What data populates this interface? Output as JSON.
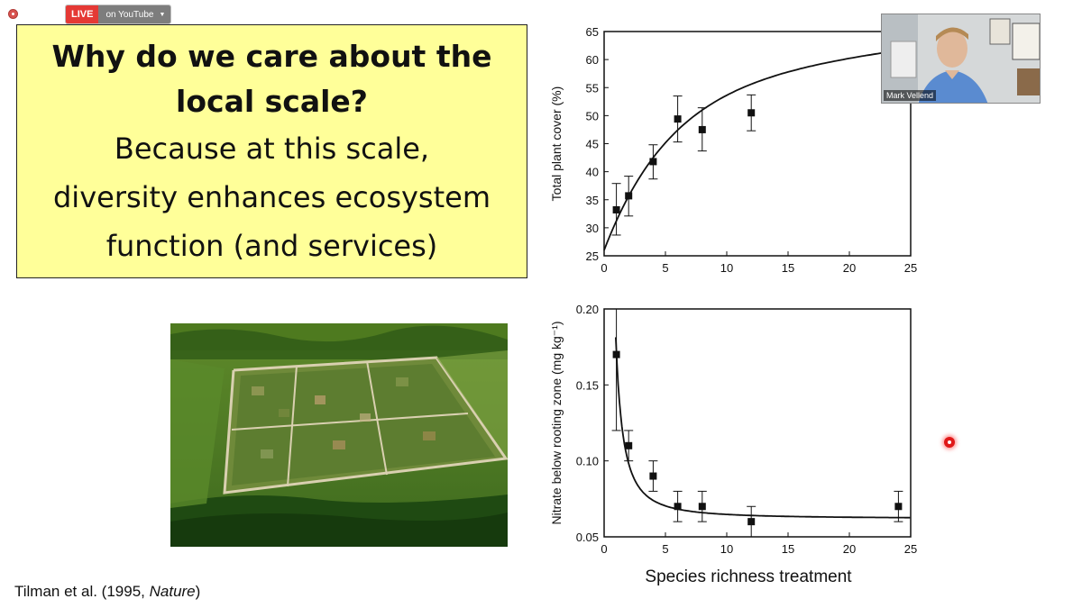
{
  "toolbar": {
    "live_label": "LIVE",
    "service_label": "on YouTube"
  },
  "slide": {
    "title_line1": "Why do we care about the",
    "title_line2": "local scale?",
    "subtitle_line1": "Because at this scale,",
    "subtitle_line2": "diversity enhances ecosystem",
    "subtitle_line3": "function (and services)",
    "citation_prefix": "Tilman et al. (1995, ",
    "citation_journal": "Nature",
    "citation_suffix": ")"
  },
  "webcam": {
    "participant_name": "Mark Vellend"
  },
  "chart_data": [
    {
      "type": "scatter",
      "title": "",
      "xlabel": "",
      "ylabel": "Total plant cover (%)",
      "xlim": [
        0,
        25
      ],
      "ylim": [
        25,
        65
      ],
      "xticks": [
        0,
        5,
        10,
        15,
        20,
        25
      ],
      "yticks": [
        25,
        30,
        35,
        40,
        45,
        50,
        55,
        60,
        65
      ],
      "x": [
        1,
        2,
        4,
        6,
        8,
        12
      ],
      "y": [
        33.2,
        35.7,
        41.8,
        49.4,
        47.5,
        50.5
      ],
      "err_low": [
        28.7,
        32.1,
        38.7,
        45.3,
        43.7,
        47.3
      ],
      "err_high": [
        37.9,
        39.2,
        44.8,
        53.5,
        51.4,
        53.7
      ],
      "fit_curve": "saturating"
    },
    {
      "type": "scatter",
      "title": "",
      "xlabel": "Species richness treatment",
      "ylabel": "Nitrate below rooting zone (mg kg⁻¹)",
      "xlim": [
        0,
        25
      ],
      "ylim": [
        0.05,
        0.2
      ],
      "xticks": [
        0,
        5,
        10,
        15,
        20,
        25
      ],
      "yticks": [
        0.05,
        0.1,
        0.15,
        0.2
      ],
      "x": [
        1,
        2,
        4,
        6,
        8,
        12,
        24
      ],
      "y": [
        0.17,
        0.11,
        0.09,
        0.07,
        0.07,
        0.06,
        0.07
      ],
      "err_low": [
        0.12,
        0.1,
        0.08,
        0.06,
        0.06,
        0.05,
        0.06
      ],
      "err_high": [
        0.2,
        0.12,
        0.1,
        0.08,
        0.08,
        0.07,
        0.08
      ],
      "fit_curve": "decaying"
    }
  ]
}
